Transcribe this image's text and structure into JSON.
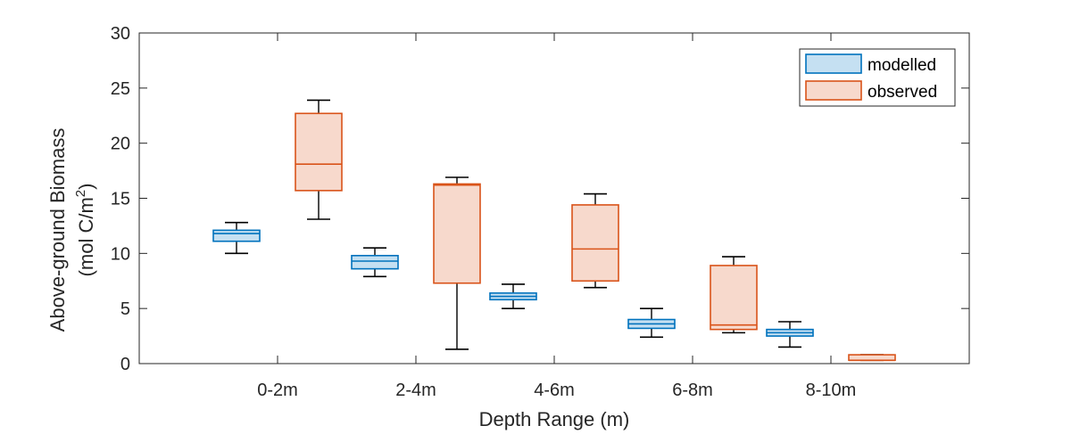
{
  "chart_data": {
    "type": "boxplot",
    "xlabel": "Depth Range (m)",
    "ylabel_line1": "Above-ground Biomass",
    "ylabel_line2_prefix": "(mol C/m",
    "ylabel_line2_sup": "2",
    "ylabel_line2_suffix": ")",
    "ylim": [
      0,
      30
    ],
    "yticks": [
      "0",
      "5",
      "10",
      "15",
      "20",
      "25",
      "30"
    ],
    "categories": [
      "0-2m",
      "2-4m",
      "4-6m",
      "6-8m",
      "8-10m"
    ],
    "legend_position": "top-right",
    "grid": false,
    "series": [
      {
        "name": "modelled",
        "edge_color": "#0072BD",
        "fill_color": "#C5E0F2",
        "boxes": [
          {
            "min": 10.0,
            "q1": 11.1,
            "median": 11.8,
            "q3": 12.1,
            "max": 12.8
          },
          {
            "min": 7.9,
            "q1": 8.6,
            "median": 9.3,
            "q3": 9.8,
            "max": 10.5
          },
          {
            "min": 5.0,
            "q1": 5.8,
            "median": 6.1,
            "q3": 6.4,
            "max": 7.2
          },
          {
            "min": 2.4,
            "q1": 3.2,
            "median": 3.6,
            "q3": 4.0,
            "max": 5.0
          },
          {
            "min": 1.5,
            "q1": 2.5,
            "median": 2.8,
            "q3": 3.1,
            "max": 3.8
          }
        ]
      },
      {
        "name": "observed",
        "edge_color": "#D95319",
        "fill_color": "#F7D9CC",
        "boxes": [
          {
            "min": 13.1,
            "q1": 15.7,
            "median": 18.1,
            "q3": 22.7,
            "max": 23.9
          },
          {
            "min": 1.3,
            "q1": 7.3,
            "median": 16.2,
            "q3": 16.3,
            "max": 16.9
          },
          {
            "min": 6.9,
            "q1": 7.5,
            "median": 10.4,
            "q3": 14.4,
            "max": 15.4
          },
          {
            "min": 2.8,
            "q1": 3.1,
            "median": 3.5,
            "q3": 8.9,
            "max": 9.7
          },
          {
            "min": 0.3,
            "q1": 0.3,
            "median": 0.3,
            "q3": 0.8,
            "max": 0.8
          }
        ]
      }
    ]
  }
}
